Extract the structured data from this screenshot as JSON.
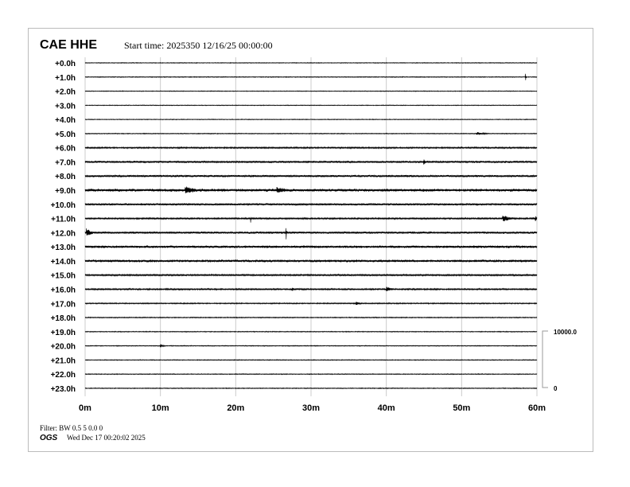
{
  "header": {
    "station": "CAE HHE",
    "start_time": "Start time: 2025350 12/16/25 00:00:00"
  },
  "footer": {
    "filter": "Filter: BW 0.5 5 0.0 0",
    "org": "OGS",
    "generated": "Wed Dec 17 00:20:02 2025"
  },
  "chart_data": {
    "type": "line",
    "subtype": "helicorder",
    "grid": true,
    "trace_color": "#000000",
    "grid_color": "#cccccc",
    "x_ticks": [
      "0m",
      "10m",
      "20m",
      "30m",
      "40m",
      "50m",
      "60m"
    ],
    "x_range_minutes": [
      0,
      60
    ],
    "row_labels": [
      "+0.0h",
      "+1.0h",
      "+2.0h",
      "+3.0h",
      "+4.0h",
      "+5.0h",
      "+6.0h",
      "+7.0h",
      "+8.0h",
      "+9.0h",
      "+10.0h",
      "+11.0h",
      "+12.0h",
      "+13.0h",
      "+14.0h",
      "+15.0h",
      "+16.0h",
      "+17.0h",
      "+18.0h",
      "+19.0h",
      "+20.0h",
      "+21.0h",
      "+22.0h",
      "+23.0h"
    ],
    "scale": {
      "max_label": "10000.0",
      "min_label": "0",
      "max": 10000,
      "min": 0
    },
    "noise_amplitude_counts": [
      70,
      80,
      70,
      70,
      70,
      80,
      140,
      210,
      210,
      280,
      210,
      150,
      210,
      250,
      250,
      170,
      140,
      110,
      90,
      80,
      80,
      80,
      80,
      80
    ],
    "events": [
      {
        "hour": 1,
        "minute": 58.5,
        "amplitude": 500,
        "duration": 0.1
      },
      {
        "hour": 5,
        "minute": 52.0,
        "amplitude": 250,
        "duration": 1.5
      },
      {
        "hour": 7,
        "minute": 45.0,
        "amplitude": 350,
        "duration": 0.2
      },
      {
        "hour": 9,
        "minute": 13.3,
        "amplitude": 650,
        "duration": 1.3
      },
      {
        "hour": 9,
        "minute": 25.5,
        "amplitude": 450,
        "duration": 1.2
      },
      {
        "hour": 11,
        "minute": 22.0,
        "amplitude": 700,
        "duration": 0.05
      },
      {
        "hour": 11,
        "minute": 55.5,
        "amplitude": 550,
        "duration": 1.2
      },
      {
        "hour": 11,
        "minute": 59.8,
        "amplitude": 550,
        "duration": 0.3
      },
      {
        "hour": 12,
        "minute": 0.2,
        "amplitude": 650,
        "duration": 0.8
      },
      {
        "hour": 12,
        "minute": 26.7,
        "amplitude": 1000,
        "duration": 0.05
      },
      {
        "hour": 16,
        "minute": 27.5,
        "amplitude": 200,
        "duration": 1.0
      },
      {
        "hour": 16,
        "minute": 40.0,
        "amplitude": 400,
        "duration": 0.9
      },
      {
        "hour": 17,
        "minute": 36.0,
        "amplitude": 250,
        "duration": 0.6
      },
      {
        "hour": 20,
        "minute": 10.0,
        "amplitude": 300,
        "duration": 0.6
      }
    ]
  }
}
